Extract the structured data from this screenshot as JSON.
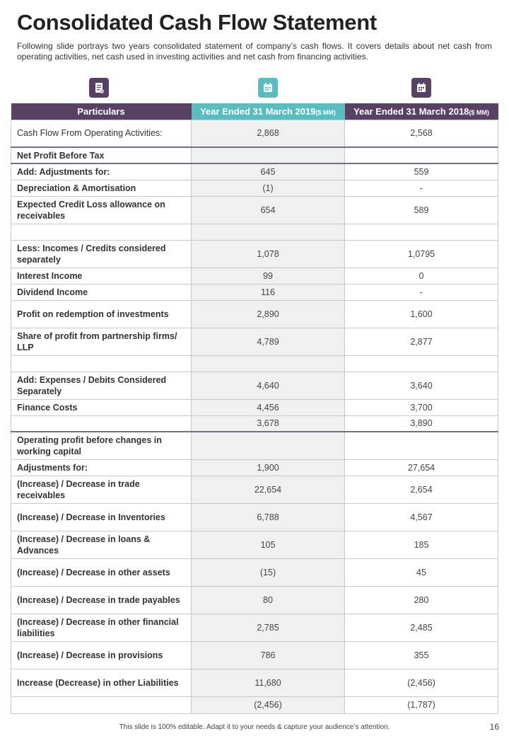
{
  "title": "Consolidated Cash Flow Statement",
  "description": "Following slide portrays two years consolidated statement of company’s cash flows. It covers details about net cash from operating activities, net cash used in investing activities and net cash from financing activities.",
  "colors": {
    "purple": "#574266",
    "teal": "#5bbcbf"
  },
  "icons": [
    "clipboard-icon",
    "calendar-icon",
    "calendar-icon"
  ],
  "headers": {
    "particulars": "Particulars",
    "y2019": "Year Ended 31 March 2019",
    "y2018": "Year Ended 31 March 2018",
    "unit": "($ MM)"
  },
  "rows": [
    {
      "label": "Cash Flow From Operating Activities:",
      "v2019": "2,868",
      "v2018": "2,568",
      "h": "d",
      "plain": true
    },
    {
      "label": "Net Profit Before Tax",
      "v2019": "",
      "v2018": "",
      "h": "s"
    },
    {
      "label": "Add: Adjustments for:",
      "v2019": "645",
      "v2018": "559",
      "h": "s"
    },
    {
      "label": "Depreciation & Amortisation",
      "v2019": "(1)",
      "v2018": "-",
      "h": "s"
    },
    {
      "label": "Expected Credit Loss allowance on receivables",
      "v2019": "654",
      "v2018": "589",
      "h": "d"
    },
    {
      "label": "",
      "v2019": "",
      "v2018": "",
      "h": "s"
    },
    {
      "label": "Less: Incomes / Credits considered separately",
      "v2019": "1,078",
      "v2018": "1,0795",
      "h": "d"
    },
    {
      "label": "Interest Income",
      "v2019": "99",
      "v2018": "0",
      "h": "s"
    },
    {
      "label": "Dividend Income",
      "v2019": "116",
      "v2018": "-",
      "h": "s"
    },
    {
      "label": "Profit on redemption of investments",
      "v2019": "2,890",
      "v2018": "1,600",
      "h": "d"
    },
    {
      "label": "Share of profit from partnership firms/ LLP",
      "v2019": "4,789",
      "v2018": "2,877",
      "h": "d"
    },
    {
      "label": "",
      "v2019": "",
      "v2018": "",
      "h": "s"
    },
    {
      "label": "Add: Expenses / Debits Considered Separately",
      "v2019": "4,640",
      "v2018": "3,640",
      "h": "d"
    },
    {
      "label": "Finance Costs",
      "v2019": "4,456",
      "v2018": "3,700",
      "h": "s"
    },
    {
      "label": "",
      "v2019": "3,678",
      "v2018": "3,890",
      "h": "s"
    },
    {
      "label": "Operating profit before changes in working capital",
      "v2019": "",
      "v2018": "",
      "h": "d"
    },
    {
      "label": "Adjustments  for:",
      "v2019": "1,900",
      "v2018": "27,654",
      "h": "s"
    },
    {
      "label": "(Increase) / Decrease in trade receivables",
      "v2019": "22,654",
      "v2018": "2,654",
      "h": "d"
    },
    {
      "label": "(Increase) / Decrease in Inventories",
      "v2019": "6,788",
      "v2018": "4,567",
      "h": "d"
    },
    {
      "label": "(Increase) / Decrease in loans & Advances",
      "v2019": "105",
      "v2018": "185",
      "h": "d"
    },
    {
      "label": "(Increase) / Decrease in other assets",
      "v2019": "(15)",
      "v2018": "45",
      "h": "d"
    },
    {
      "label": "(Increase) / Decrease in trade payables",
      "v2019": "80",
      "v2018": "280",
      "h": "d"
    },
    {
      "label": "(Increase) / Decrease in other financial liabilities",
      "v2019": "2,785",
      "v2018": "2,485",
      "h": "d"
    },
    {
      "label": "(Increase) / Decrease in provisions",
      "v2019": "786",
      "v2018": "355",
      "h": "d"
    },
    {
      "label": "Increase (Decrease) in other Liabilities",
      "v2019": "11,680",
      "v2018": "(2,456)",
      "h": "d"
    },
    {
      "label": "",
      "v2019": "(2,456)",
      "v2018": "(1,787)",
      "h": "e"
    }
  ],
  "footer": "This slide is 100% editable.  Adapt it to your needs & capture your audience’s attention.",
  "page_number": "16"
}
